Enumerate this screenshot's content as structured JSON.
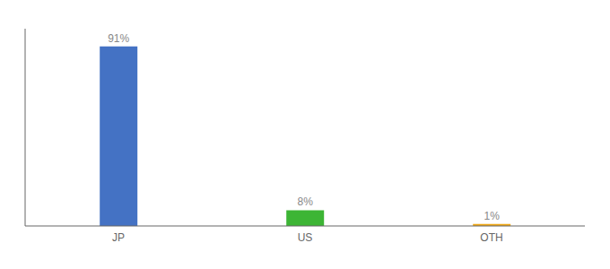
{
  "chart_data": {
    "type": "bar",
    "categories": [
      "JP",
      "US",
      "OTH"
    ],
    "values": [
      91,
      8,
      1
    ],
    "value_labels": [
      "91%",
      "8%",
      "1%"
    ],
    "colors": [
      "#4472c4",
      "#3db535",
      "#f0a918"
    ],
    "ylim": [
      0,
      100
    ],
    "data_labels": true,
    "tick_labels": "x",
    "grid": false
  }
}
